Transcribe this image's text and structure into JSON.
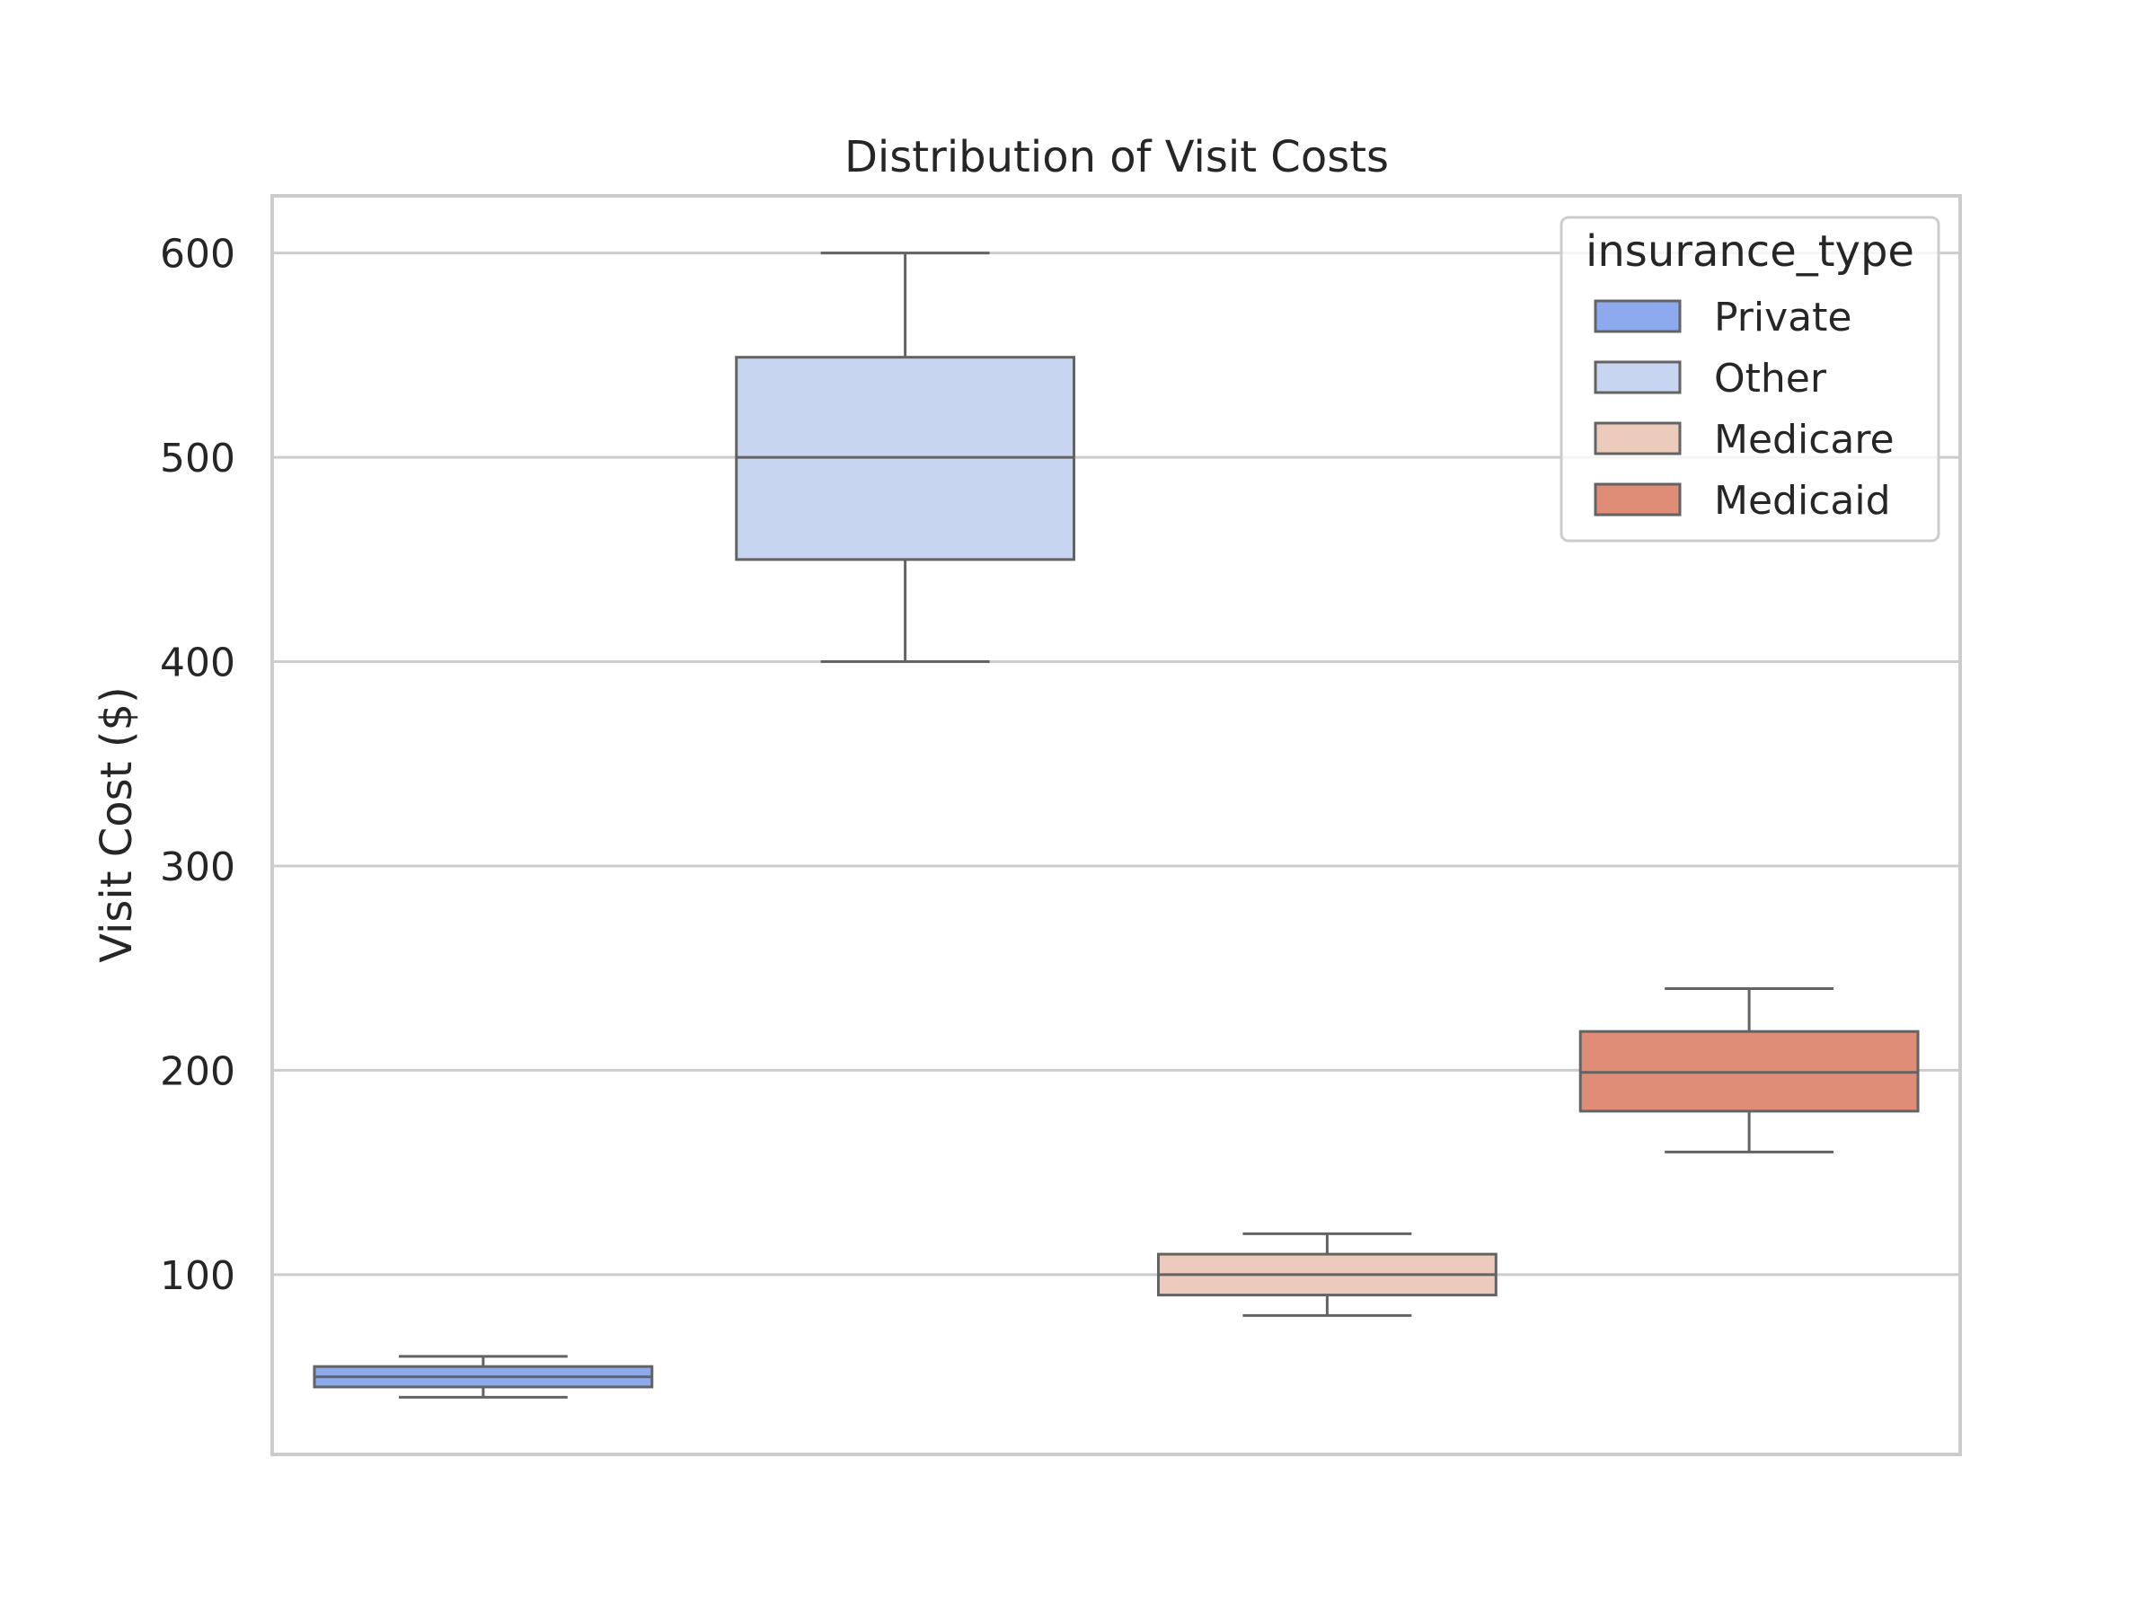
{
  "chart_data": {
    "type": "box",
    "title": "Distribution of Visit Costs",
    "xlabel": "",
    "ylabel": "Visit Cost ($)",
    "ylim": [
      12,
      628
    ],
    "yticks": [
      100,
      200,
      300,
      400,
      500,
      600
    ],
    "grid": "horizontal",
    "legend": {
      "title": "insurance_type",
      "placement": "top-right"
    },
    "series": [
      {
        "name": "Private",
        "color": "#8caaed",
        "whisker_low": 40,
        "q1": 45,
        "median": 50,
        "q3": 55,
        "whisker_high": 60
      },
      {
        "name": "Other",
        "color": "#c8d5f0",
        "whisker_low": 400,
        "q1": 450,
        "median": 500,
        "q3": 549,
        "whisker_high": 600
      },
      {
        "name": "Medicare",
        "color": "#eccbbd",
        "whisker_low": 80,
        "q1": 90,
        "median": 100,
        "q3": 110,
        "whisker_high": 120
      },
      {
        "name": "Medicaid",
        "color": "#df8d76",
        "whisker_low": 160,
        "q1": 180,
        "median": 199,
        "q3": 219,
        "whisker_high": 240
      }
    ]
  }
}
